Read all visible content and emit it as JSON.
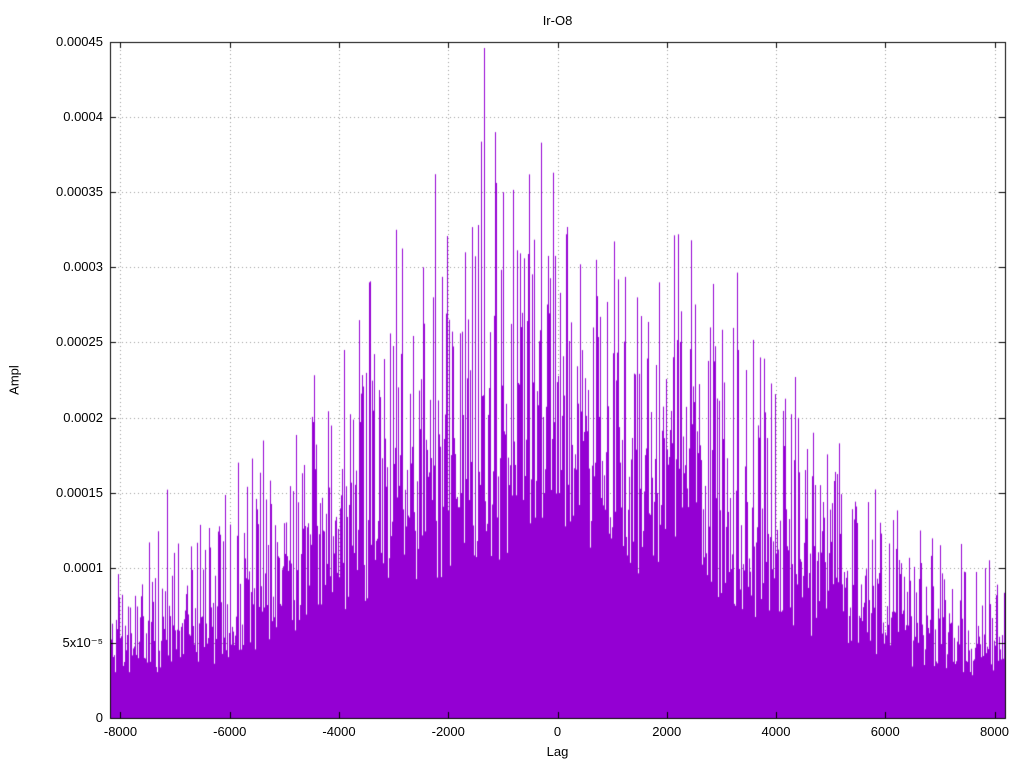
{
  "chart_data": {
    "type": "impulse",
    "title": "Ir-O8",
    "xlabel": "Lag",
    "ylabel": "Ampl",
    "xlim": [
      -8192,
      8192
    ],
    "ylim": [
      0,
      0.00045
    ],
    "x_ticks": [
      {
        "v": -8000,
        "label": "-8000"
      },
      {
        "v": -6000,
        "label": "-6000"
      },
      {
        "v": -4000,
        "label": "-4000"
      },
      {
        "v": -2000,
        "label": "-2000"
      },
      {
        "v": 0,
        "label": "0"
      },
      {
        "v": 2000,
        "label": "2000"
      },
      {
        "v": 4000,
        "label": "4000"
      },
      {
        "v": 6000,
        "label": "6000"
      },
      {
        "v": 8000,
        "label": "8000"
      }
    ],
    "y_ticks": [
      {
        "v": 0,
        "label": "0"
      },
      {
        "v": 5e-05,
        "label": "5x10⁻⁵"
      },
      {
        "v": 0.0001,
        "label": "0.0001"
      },
      {
        "v": 0.00015,
        "label": "0.00015"
      },
      {
        "v": 0.0002,
        "label": "0.0002"
      },
      {
        "v": 0.00025,
        "label": "0.00025"
      },
      {
        "v": 0.0003,
        "label": "0.0003"
      },
      {
        "v": 0.00035,
        "label": "0.00035"
      },
      {
        "v": 0.0004,
        "label": "0.0004"
      },
      {
        "v": 0.00045,
        "label": "0.00045"
      }
    ],
    "grid": true,
    "legend": "none",
    "series_color": "#9400d3",
    "grid_color": "#9a9a9a",
    "axis_color": "#000000",
    "seed": 1337,
    "envelope": {
      "x": [
        -8192,
        -7500,
        -6500,
        -5500,
        -4500,
        -3500,
        -2500,
        -1500,
        -500,
        0,
        500,
        1500,
        2500,
        3500,
        4500,
        5500,
        6500,
        7500,
        8192
      ],
      "bulk": [
        4.5e-05,
        5e-05,
        6e-05,
        8e-05,
        0.00011,
        0.00014,
        0.00016,
        0.000185,
        0.0002,
        0.0002,
        0.00019,
        0.00017,
        0.00015,
        0.00012,
        0.0001,
        8e-05,
        6e-05,
        5e-05,
        4.5e-05
      ],
      "peak": [
        9e-05,
        0.000105,
        0.00012,
        0.00015,
        0.0002,
        0.00024,
        0.00028,
        0.00033,
        0.00032,
        0.00031,
        0.0003,
        0.00028,
        0.00028,
        0.00024,
        0.0002,
        0.00014,
        0.00011,
        0.0001,
        9e-05
      ]
    },
    "notable_peaks": [
      [
        -7150,
        0.000152
      ],
      [
        -5850,
        0.00017
      ],
      [
        -4470,
        0.000197
      ],
      [
        -3900,
        0.000245
      ],
      [
        -3450,
        0.00029
      ],
      [
        -2950,
        0.000325
      ],
      [
        -2250,
        0.000362
      ],
      [
        -1700,
        0.00031
      ],
      [
        -1340,
        0.000446
      ],
      [
        -1150,
        0.00039
      ],
      [
        -1000,
        0.00035
      ],
      [
        -820,
        0.000307
      ],
      [
        -620,
        0.000306
      ],
      [
        -300,
        0.000383
      ],
      [
        -80,
        0.000363
      ],
      [
        150,
        0.000322
      ],
      [
        420,
        0.000302
      ],
      [
        700,
        0.000305
      ],
      [
        1100,
        0.000292
      ],
      [
        1450,
        0.00028
      ],
      [
        1850,
        0.00029
      ],
      [
        2200,
        0.000322
      ],
      [
        2450,
        0.000318
      ],
      [
        2800,
        0.00026
      ],
      [
        3300,
        0.000245
      ],
      [
        3700,
        0.00024
      ],
      [
        4350,
        0.000227
      ],
      [
        4800,
        0.00015
      ],
      [
        5900,
        0.00013
      ],
      [
        7000,
        0.000115
      ],
      [
        7900,
        0.000105
      ]
    ],
    "description": "Dense impulse amplitude vs lag, roughly triangular envelope peaking near lag 0; tallest spike ~0.000446 near lag -1300."
  }
}
